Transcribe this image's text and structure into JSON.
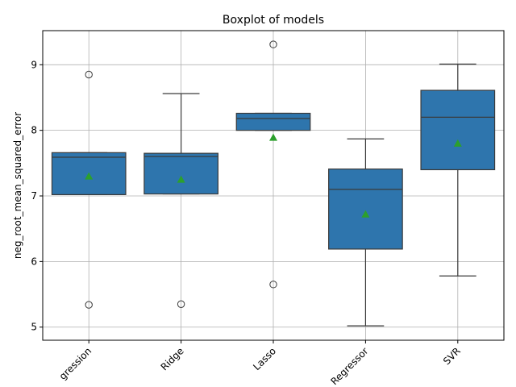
{
  "chart_data": {
    "type": "box",
    "title": "Boxplot of models",
    "xlabel": "",
    "ylabel": "neg_root_mean_squared_error",
    "ylim": [
      4.8,
      9.52
    ],
    "yticks": [
      5,
      6,
      7,
      8,
      9
    ],
    "grid": true,
    "x_tick_rotation": 45,
    "box_color": "#2e75ad",
    "edge_color": "#3a3a3a",
    "mean_marker_color": "#2ca02c",
    "categories": [
      "LinearRegression",
      "Ridge",
      "Lasso",
      "RandomForestRegressor",
      "SVR"
    ],
    "tick_labels_visible": [
      "gression",
      "Ridge",
      "Lasso",
      "Regressor",
      "SVR"
    ],
    "boxes": [
      {
        "name": "LinearRegression",
        "whisker_low": 7.02,
        "q1": 7.02,
        "median": 7.59,
        "q3": 7.66,
        "whisker_high": 7.66,
        "mean": 7.3,
        "outliers": [
          8.85,
          5.34
        ]
      },
      {
        "name": "Ridge",
        "whisker_low": 7.03,
        "q1": 7.03,
        "median": 7.6,
        "q3": 7.65,
        "whisker_high": 8.56,
        "mean": 7.25,
        "outliers": [
          5.35
        ]
      },
      {
        "name": "Lasso",
        "whisker_low": 8.0,
        "q1": 8.0,
        "median": 8.18,
        "q3": 8.26,
        "whisker_high": 8.26,
        "mean": 7.89,
        "outliers": [
          9.31,
          5.65
        ]
      },
      {
        "name": "RandomForestRegressor",
        "whisker_low": 5.02,
        "q1": 6.19,
        "median": 7.1,
        "q3": 7.41,
        "whisker_high": 7.87,
        "mean": 6.72,
        "outliers": []
      },
      {
        "name": "SVR",
        "whisker_low": 5.78,
        "q1": 7.4,
        "median": 8.2,
        "q3": 8.61,
        "whisker_high": 9.01,
        "mean": 7.8,
        "outliers": []
      }
    ]
  }
}
